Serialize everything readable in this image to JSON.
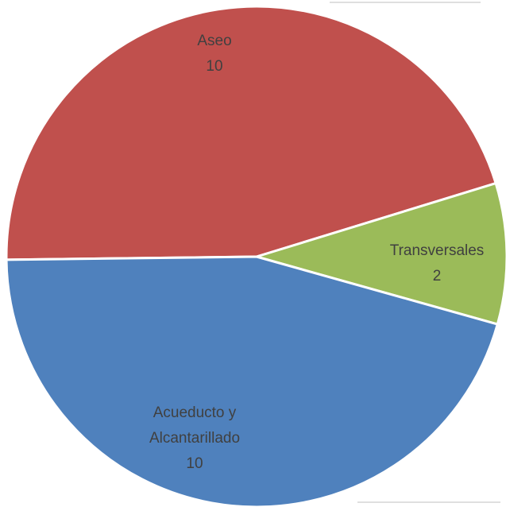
{
  "chart_data": {
    "type": "pie",
    "categories": [
      "Aseo",
      "Transversales",
      "Acueducto y Alcantarillado"
    ],
    "values": [
      10,
      2,
      10
    ],
    "colors": [
      "#c0504d",
      "#9bbb59",
      "#4f81bd"
    ]
  }
}
